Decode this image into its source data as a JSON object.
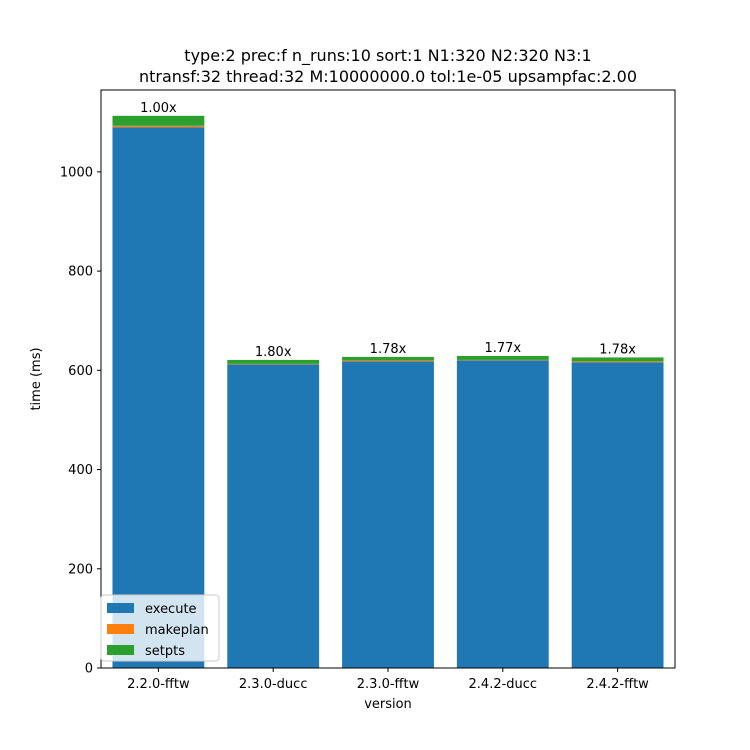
{
  "chart_data": {
    "type": "bar",
    "stacked": true,
    "title_lines": [
      "type:2 prec:f n_runs:10 sort:1 N1:320 N2:320 N3:1",
      "ntransf:32 thread:32 M:10000000.0 tol:1e-05 upsampfac:2.00"
    ],
    "xlabel": "version",
    "ylabel": "time (ms)",
    "ylim": [
      0,
      1165
    ],
    "yticks": [
      0,
      200,
      400,
      600,
      800,
      1000
    ],
    "categories": [
      "2.2.0-fftw",
      "2.3.0-ducc",
      "2.3.0-fftw",
      "2.4.2-ducc",
      "2.4.2-fftw"
    ],
    "series": [
      {
        "name": "execute",
        "color": "#1f77b4",
        "values": [
          1090,
          612,
          618,
          620,
          616
        ]
      },
      {
        "name": "makeplan",
        "color": "#ff7f0e",
        "values": [
          3,
          1,
          2,
          1,
          2
        ]
      },
      {
        "name": "setpts",
        "color": "#2ca02c",
        "values": [
          20,
          8,
          7,
          8,
          8
        ]
      }
    ],
    "bar_labels": [
      "1.00x",
      "1.80x",
      "1.78x",
      "1.77x",
      "1.78x"
    ],
    "legend_position": "lower-left",
    "grid": false
  }
}
